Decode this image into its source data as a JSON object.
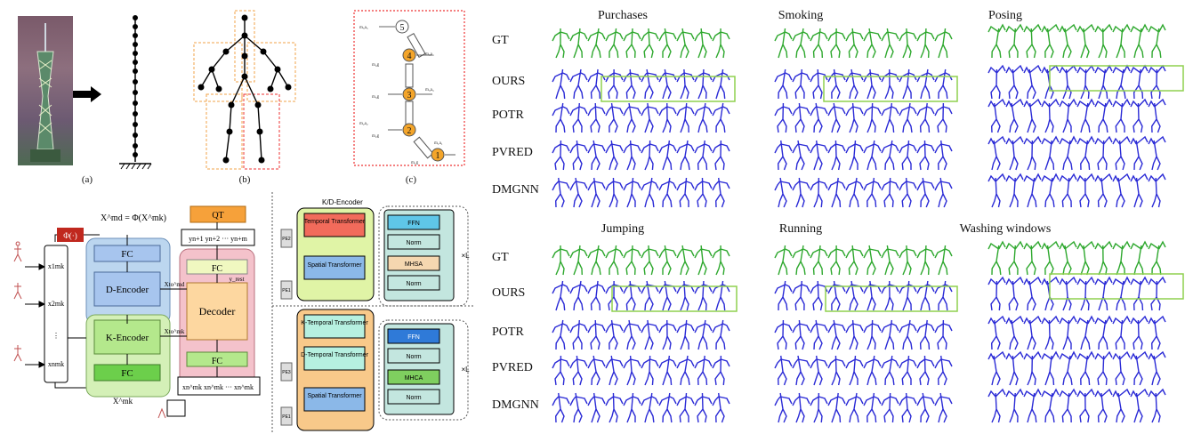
{
  "figure_left": {
    "subfigure_captions": [
      "(a)",
      "(b)",
      "(c)"
    ],
    "chain_node_labels": [
      "5",
      "4",
      "3",
      "2",
      "1"
    ]
  },
  "architecture": {
    "phi_label": "Φ(·)",
    "md_equation": "X^md = Φ(X^mk)",
    "fc_top": "FC",
    "d_encoder": "D-Encoder",
    "k_encoder": "K-Encoder",
    "fc_bottom": "FC",
    "decoder": "Decoder",
    "qt": "QT",
    "inputs": [
      "x1mk",
      "x2mk",
      "⋮",
      "xnmk"
    ],
    "xmk_label": "X^mk",
    "x_md_to": "Xto^md",
    "x_mk_to": "Xto^mk",
    "y_rest": "y_rest",
    "y_outputs": "yn+1 yn+2 ··· yn+m",
    "x_bottom_row": "xn^mk xn^mk ··· xn^mk"
  },
  "encoder_details": {
    "kd_title": "K/D-Encoder",
    "temporal": "Temporal Transformer",
    "spatial": "Spatial Transformer",
    "ffn": "FFN",
    "norm": "Norm",
    "mhsa": "MHSA",
    "mhca": "MHCA",
    "k_temporal": "K-Temporal Transformer",
    "d_temporal": "D-Temporal Transformer",
    "spatial2": "Spatial Transformer",
    "pe_labels": [
      "PE2",
      "PE1",
      "PE2",
      "PE3",
      "PE1"
    ],
    "times_l": "×L"
  },
  "motion_grid": {
    "row_labels": [
      "GT",
      "OURS",
      "POTR",
      "PVRED",
      "DMGNN"
    ],
    "top_titles": [
      "Purchases",
      "Smoking",
      "Posing"
    ],
    "bottom_titles": [
      "Jumping",
      "Running",
      "Washing windows"
    ],
    "colors": {
      "gt": "#2ea82e",
      "pred": "#2b2bd6",
      "highlight": "#8fd14f"
    }
  }
}
